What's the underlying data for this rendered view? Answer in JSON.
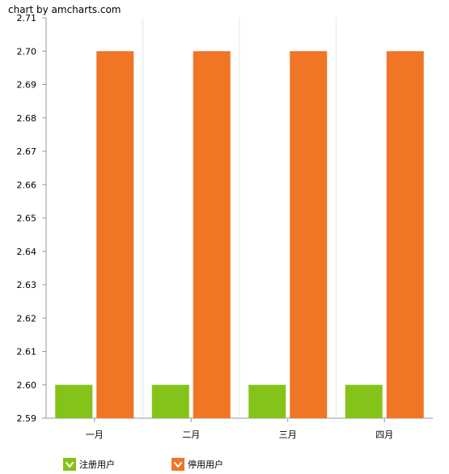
{
  "credit_text": "chart by amcharts.com",
  "chart_data": {
    "type": "bar",
    "categories": [
      "一月",
      "二月",
      "三月",
      "四月"
    ],
    "series": [
      {
        "name": "注册用户",
        "values": [
          2.6,
          2.6,
          2.6,
          2.6
        ],
        "color": "#84c41a"
      },
      {
        "name": "停用用户",
        "values": [
          2.7,
          2.7,
          2.7,
          2.7
        ],
        "color": "#f07525"
      }
    ],
    "ylim": [
      2.59,
      2.71
    ],
    "yticks": [
      "2.59",
      "2.60",
      "2.61",
      "2.62",
      "2.63",
      "2.64",
      "2.65",
      "2.66",
      "2.67",
      "2.68",
      "2.69",
      "2.70",
      "2.71"
    ],
    "legend_position": "bottom",
    "grid": true
  }
}
